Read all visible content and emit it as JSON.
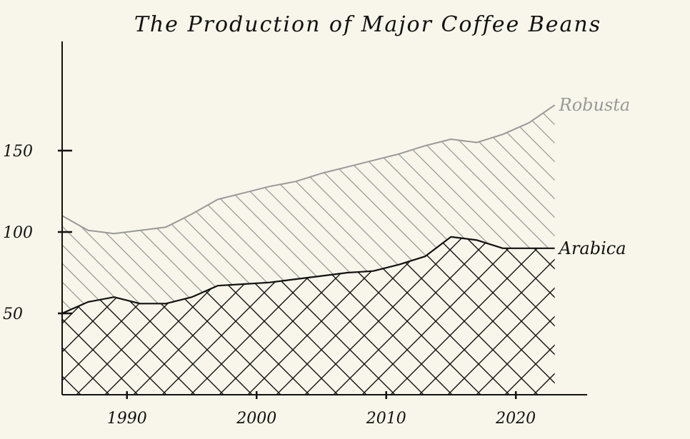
{
  "chart_data": {
    "type": "area",
    "title": "The Production of Major Coffee Beans",
    "xlabel": "",
    "ylabel": "",
    "x": [
      1985,
      1987,
      1989,
      1991,
      1993,
      1995,
      1997,
      1999,
      2001,
      2003,
      2005,
      2007,
      2009,
      2011,
      2013,
      2015,
      2017,
      2019,
      2021,
      2023
    ],
    "xlim": [
      1985,
      2025.5
    ],
    "ylim": [
      0,
      165
    ],
    "xticks": [
      {
        "value": 1990,
        "label": "1990"
      },
      {
        "value": 2000,
        "label": "2000"
      },
      {
        "value": 2010,
        "label": "2010"
      },
      {
        "value": 2020,
        "label": "2020"
      }
    ],
    "yticks": [
      {
        "value": 50,
        "label": "50"
      },
      {
        "value": 100,
        "label": "100"
      },
      {
        "value": 150,
        "label": "150"
      }
    ],
    "series": [
      {
        "name": "Arabica",
        "color": "#111111",
        "values": [
          50,
          57,
          60,
          56,
          56,
          60,
          67,
          68,
          69,
          71,
          73,
          75,
          76,
          80,
          85,
          97,
          95,
          90,
          90,
          90
        ]
      },
      {
        "name": "Robusta",
        "color": "#999999",
        "values": [
          60,
          44,
          39,
          45,
          47,
          51,
          53,
          56,
          59,
          60,
          63,
          65,
          68,
          68,
          68,
          60,
          60,
          70,
          77,
          88
        ]
      }
    ],
    "stacked": true,
    "grid": false,
    "legend": "labels at line ends (right)"
  }
}
